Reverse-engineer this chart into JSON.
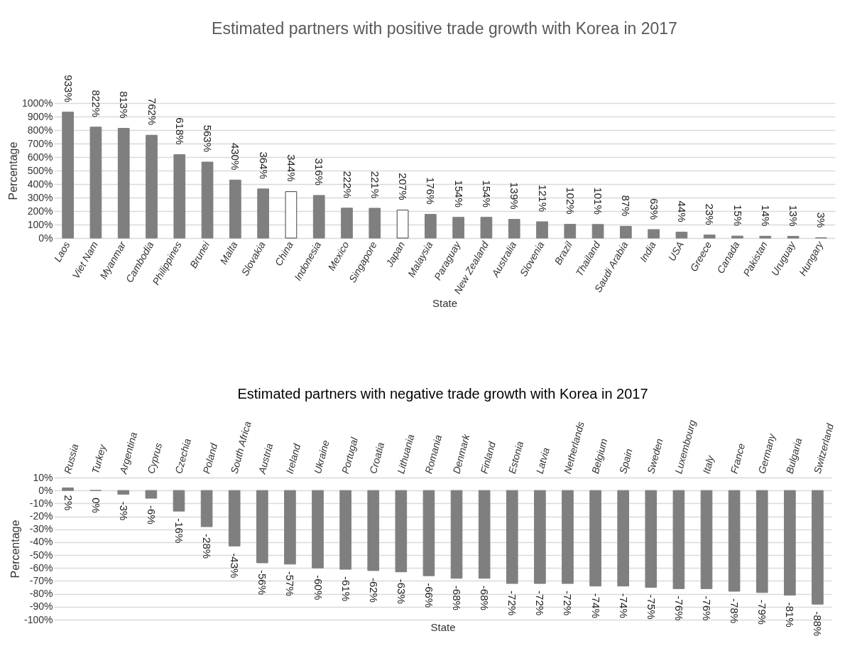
{
  "chart_data": [
    {
      "type": "bar",
      "title": "Estimated partners with positive trade growth with Korea in 2017",
      "xlabel": "State",
      "ylabel": "Percentage",
      "categories": [
        "Laos",
        "Viet Nam",
        "Myanmar",
        "Cambodia",
        "Philippines",
        "Brunei",
        "Malta",
        "Slovakia",
        "China",
        "Indonesia",
        "Mexico",
        "Singapore",
        "Japan",
        "Malaysia",
        "Paraguay",
        "New Zealand",
        "Australia",
        "Slovenia",
        "Brazil",
        "Thailand",
        "Saudi Arabia",
        "India",
        "USA",
        "Greece",
        "Canada",
        "Pakistan",
        "Uruguay",
        "Hungary"
      ],
      "values": [
        933,
        822,
        813,
        762,
        618,
        563,
        430,
        364,
        344,
        316,
        222,
        221,
        207,
        176,
        154,
        154,
        139,
        121,
        102,
        101,
        87,
        63,
        44,
        23,
        15,
        14,
        13,
        3
      ],
      "value_labels": [
        "933%",
        "822%",
        "813%",
        "762%",
        "618%",
        "563%",
        "430%",
        "364%",
        "344%",
        "316%",
        "222%",
        "221%",
        "207%",
        "176%",
        "154%",
        "154%",
        "139%",
        "121%",
        "102%",
        "101%",
        "87%",
        "63%",
        "44%",
        "23%",
        "15%",
        "14%",
        "13%",
        "3%"
      ],
      "colors": [
        "#7f7f7f",
        "#7f7f7f",
        "#7f7f7f",
        "#7f7f7f",
        "#7f7f7f",
        "#7f7f7f",
        "#7f7f7f",
        "#7f7f7f",
        "#ffffff",
        "#7f7f7f",
        "#7f7f7f",
        "#7f7f7f",
        "#ffffff",
        "#7f7f7f",
        "#7f7f7f",
        "#7f7f7f",
        "#7f7f7f",
        "#7f7f7f",
        "#7f7f7f",
        "#7f7f7f",
        "#7f7f7f",
        "#7f7f7f",
        "#7f7f7f",
        "#7f7f7f",
        "#7f7f7f",
        "#7f7f7f",
        "#7f7f7f",
        "#7f7f7f"
      ],
      "ylim": [
        0,
        1000
      ],
      "yticks": [
        {
          "value": 0,
          "label": "0%"
        },
        {
          "value": 100,
          "label": "100%"
        },
        {
          "value": 200,
          "label": "200%"
        },
        {
          "value": 300,
          "label": "300%"
        },
        {
          "value": 400,
          "label": "400%"
        },
        {
          "value": 500,
          "label": "500%"
        },
        {
          "value": 600,
          "label": "600%"
        },
        {
          "value": 700,
          "label": "700%"
        },
        {
          "value": 800,
          "label": "800%"
        },
        {
          "value": 900,
          "label": "900%"
        },
        {
          "value": 1000,
          "label": "1000%"
        }
      ],
      "grid": "y"
    },
    {
      "type": "bar",
      "title": "Estimated partners with negative trade growth with Korea in 2017",
      "xlabel": "State",
      "ylabel": "Percentage",
      "categories": [
        "Russia",
        "Turkey",
        "Argentina",
        "Cyprus",
        "Czechia",
        "Poland",
        "South Africa",
        "Austria",
        "Ireland",
        "Ukraine",
        "Portugal",
        "Croatia",
        "Lithuania",
        "Romania",
        "Denmark",
        "Finland",
        "Estonia",
        "Latvia",
        "Netherlands",
        "Belgium",
        "Spain",
        "Sweden",
        "Luxembourg",
        "Italy",
        "France",
        "Germany",
        "Bulgaria",
        "Switzerland"
      ],
      "values": [
        2,
        0,
        -3,
        -6,
        -16,
        -28,
        -43,
        -56,
        -57,
        -60,
        -61,
        -62,
        -63,
        -66,
        -68,
        -68,
        -72,
        -72,
        -72,
        -74,
        -74,
        -75,
        -76,
        -76,
        -78,
        -79,
        -81,
        -88
      ],
      "value_labels": [
        "2%",
        "0%",
        "-3%",
        "-6%",
        "-16%",
        "-28%",
        "-43%",
        "-56%",
        "-57%",
        "-60%",
        "-61%",
        "-62%",
        "-63%",
        "-66%",
        "-68%",
        "-68%",
        "-72%",
        "-72%",
        "-72%",
        "-74%",
        "-74%",
        "-75%",
        "-76%",
        "-76%",
        "-78%",
        "-79%",
        "-81%",
        "-88%"
      ],
      "color": "#7f7f7f",
      "ylim": [
        -100,
        10
      ],
      "yticks": [
        {
          "value": 10,
          "label": "10%"
        },
        {
          "value": 0,
          "label": "0%"
        },
        {
          "value": -10,
          "label": "-10%"
        },
        {
          "value": -20,
          "label": "-20%"
        },
        {
          "value": -30,
          "label": "-30%"
        },
        {
          "value": -40,
          "label": "-40%"
        },
        {
          "value": -50,
          "label": "-50%"
        },
        {
          "value": -60,
          "label": "-60%"
        },
        {
          "value": -70,
          "label": "-70%"
        },
        {
          "value": -80,
          "label": "-80%"
        },
        {
          "value": -90,
          "label": "-90%"
        },
        {
          "value": -100,
          "label": "-100%"
        }
      ],
      "grid": "y"
    }
  ]
}
